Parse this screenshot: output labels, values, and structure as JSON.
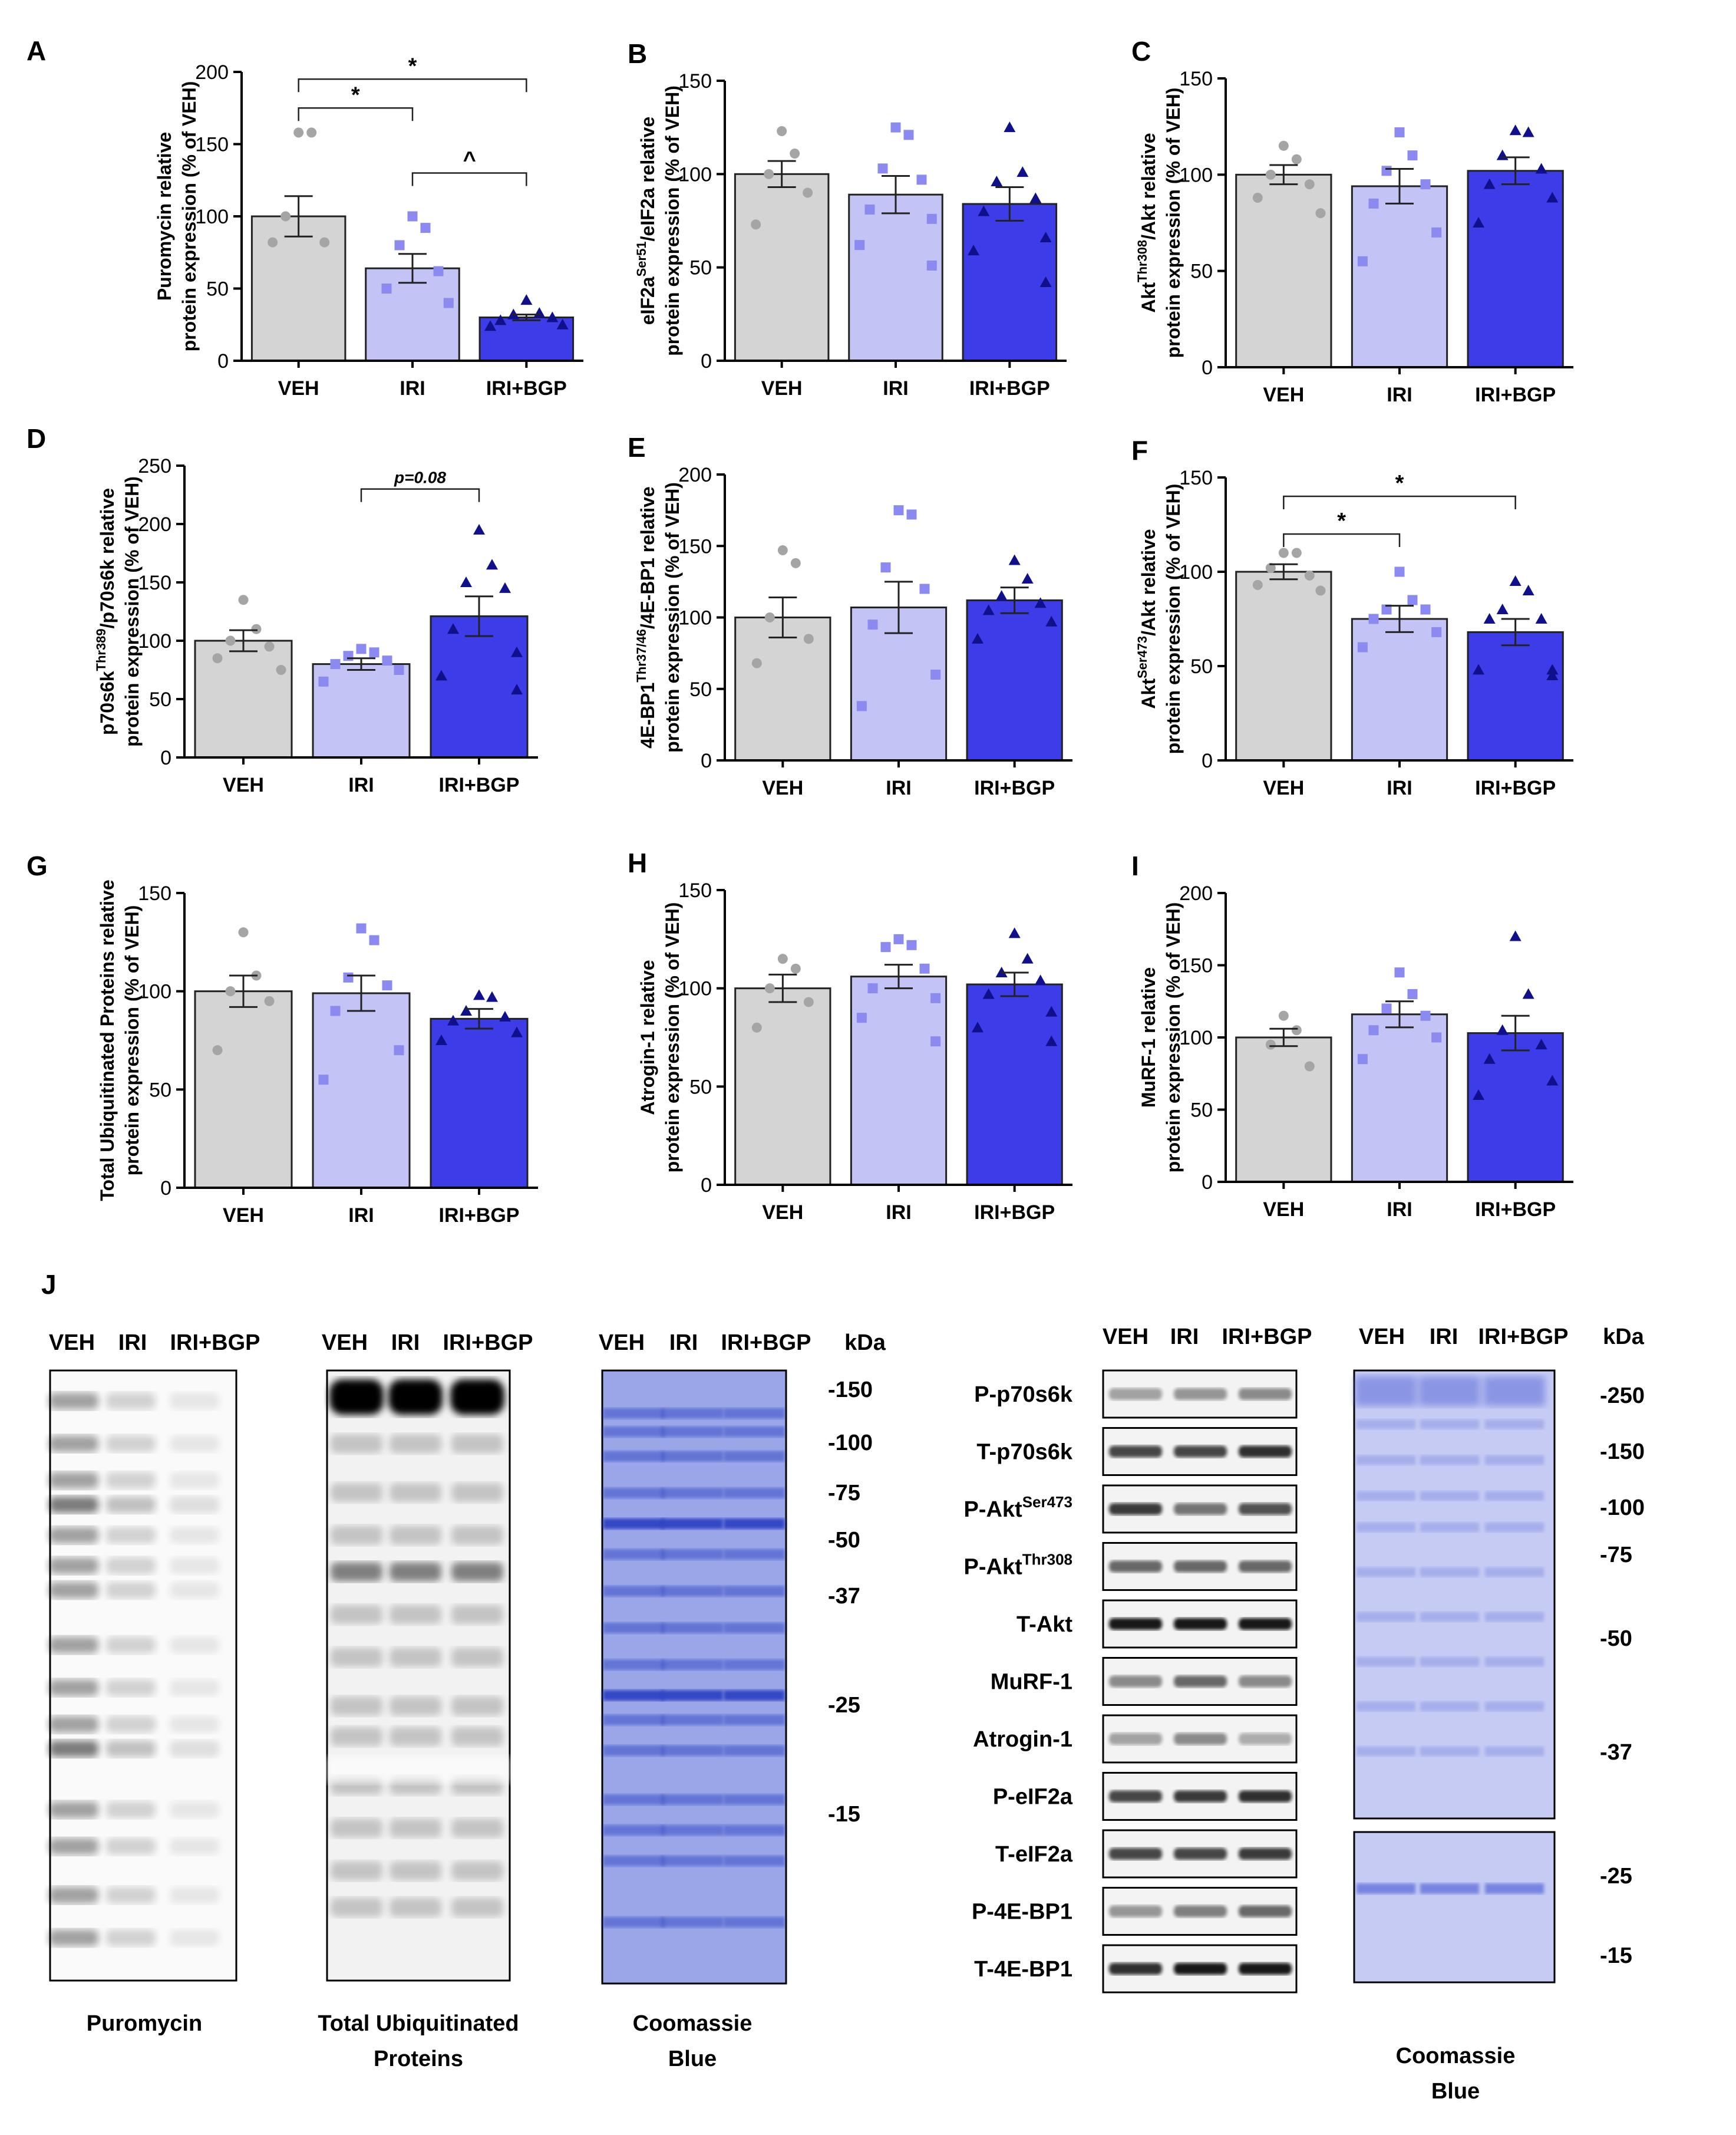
{
  "groups": [
    "VEH",
    "IRI",
    "IRI+BGP"
  ],
  "colors": {
    "VEH_bar": "#d4d4d4",
    "IRI_bar": "#c3c3f5",
    "BGP_bar": "#3c3ce8",
    "VEH_pt": "#a5a5a5",
    "IRI_pt": "#8a8af0",
    "BGP_pt": "#10108a",
    "coomassie": "#4a5fd0",
    "coomassie_light": "#9aa6e8"
  },
  "chart_data": [
    {
      "panel": "A",
      "type": "bar",
      "title": "",
      "ylabel": "Puromycin relative",
      "ylabel2": "protein expression (% of VEH)",
      "categories": [
        "VEH",
        "IRI",
        "IRI+BGP"
      ],
      "values": [
        100,
        64,
        30
      ],
      "sem": [
        14,
        10,
        2
      ],
      "ylim": [
        0,
        200
      ],
      "ticks": [
        0,
        50,
        100,
        150,
        200
      ],
      "points": [
        [
          158,
          158,
          100,
          82,
          82
        ],
        [
          100,
          92,
          80,
          62,
          50,
          40
        ],
        [
          42,
          33,
          32,
          30,
          28,
          25,
          24
        ]
      ],
      "markers": [
        "circle",
        "square",
        "triangle"
      ],
      "annotations": [
        {
          "from": 0,
          "to": 1,
          "level": 175,
          "text": "*"
        },
        {
          "from": 1,
          "to": 2,
          "level": 130,
          "text": "^"
        },
        {
          "from": 0,
          "to": 2,
          "level": 195,
          "text": "*"
        }
      ]
    },
    {
      "panel": "B",
      "type": "bar",
      "ylabel": "eIF2a relative",
      "ylabel_sup_base": "eIF2a",
      "ylabel_sup": "Ser51",
      "ylabel_suffix": "/eIF2a relative",
      "ylabel2": "protein expression (% of VEH)",
      "categories": [
        "VEH",
        "IRI",
        "IRI+BGP"
      ],
      "values": [
        100,
        89,
        84
      ],
      "sem": [
        7,
        10,
        9
      ],
      "ylim": [
        0,
        150
      ],
      "ticks": [
        0,
        50,
        100,
        150
      ],
      "points": [
        [
          123,
          111,
          100,
          90,
          73
        ],
        [
          125,
          121,
          103,
          97,
          81,
          76,
          62,
          51
        ],
        [
          125,
          101,
          96,
          87,
          80,
          66,
          59,
          42
        ]
      ],
      "markers": [
        "circle",
        "square",
        "triangle"
      ],
      "annotations": []
    },
    {
      "panel": "C",
      "type": "bar",
      "ylabel_sup_base": "Akt",
      "ylabel_sup": "Thr308",
      "ylabel_suffix": "/Akt relative",
      "ylabel2": "protein expression (% of VEH)",
      "categories": [
        "VEH",
        "IRI",
        "IRI+BGP"
      ],
      "values": [
        100,
        94,
        102
      ],
      "sem": [
        5,
        9,
        7
      ],
      "ylim": [
        0,
        150
      ],
      "ticks": [
        0,
        50,
        100,
        150
      ],
      "points": [
        [
          115,
          108,
          100,
          95,
          88,
          80
        ],
        [
          122,
          110,
          102,
          95,
          85,
          70,
          55
        ],
        [
          123,
          122,
          110,
          103,
          95,
          88,
          75
        ]
      ],
      "markers": [
        "circle",
        "square",
        "triangle"
      ],
      "annotations": []
    },
    {
      "panel": "D",
      "type": "bar",
      "ylabel_sup_base": "p70s6k",
      "ylabel_sup": "Thr389",
      "ylabel_suffix": "/p70s6k relative",
      "ylabel2": "protein expression (% of VEH)",
      "categories": [
        "VEH",
        "IRI",
        "IRI+BGP"
      ],
      "values": [
        100,
        80,
        121
      ],
      "sem": [
        9,
        5,
        17
      ],
      "ylim": [
        0,
        250
      ],
      "ticks": [
        0,
        50,
        100,
        150,
        200,
        250
      ],
      "points": [
        [
          135,
          110,
          100,
          95,
          85,
          75
        ],
        [
          93,
          90,
          87,
          83,
          80,
          75,
          65
        ],
        [
          195,
          165,
          150,
          145,
          110,
          90,
          70,
          58
        ]
      ],
      "markers": [
        "circle",
        "square",
        "triangle"
      ],
      "annotations": [
        {
          "from": 1,
          "to": 2,
          "level": 230,
          "text": "p=0.08",
          "italic": true
        }
      ]
    },
    {
      "panel": "E",
      "type": "bar",
      "ylabel_sup_base": "4E-BP1",
      "ylabel_sup": "Thr37/46",
      "ylabel_suffix": "/4E-BP1 relative",
      "ylabel2": "protein expression (% of VEH)",
      "categories": [
        "VEH",
        "IRI",
        "IRI+BGP"
      ],
      "values": [
        100,
        107,
        112
      ],
      "sem": [
        14,
        18,
        9
      ],
      "ylim": [
        0,
        200
      ],
      "ticks": [
        0,
        50,
        100,
        150,
        200
      ],
      "points": [
        [
          147,
          138,
          100,
          85,
          68
        ],
        [
          175,
          172,
          135,
          120,
          95,
          60,
          38
        ],
        [
          140,
          127,
          115,
          110,
          105,
          97,
          85
        ]
      ],
      "markers": [
        "circle",
        "square",
        "triangle"
      ],
      "annotations": []
    },
    {
      "panel": "F",
      "type": "bar",
      "ylabel_sup_base": "Akt",
      "ylabel_sup": "Ser473",
      "ylabel_suffix": "/Akt relative",
      "ylabel2": "protein expression (% of VEH)",
      "categories": [
        "VEH",
        "IRI",
        "IRI+BGP"
      ],
      "values": [
        100,
        75,
        68
      ],
      "sem": [
        4,
        7,
        7
      ],
      "ylim": [
        0,
        150
      ],
      "ticks": [
        0,
        50,
        100,
        150
      ],
      "points": [
        [
          110,
          110,
          102,
          98,
          93,
          90
        ],
        [
          100,
          85,
          80,
          80,
          75,
          68,
          60
        ],
        [
          95,
          90,
          80,
          75,
          75,
          48,
          48,
          45
        ]
      ],
      "markers": [
        "circle",
        "square",
        "triangle"
      ],
      "annotations": [
        {
          "from": 0,
          "to": 1,
          "level": 120,
          "text": "*"
        },
        {
          "from": 0,
          "to": 2,
          "level": 140,
          "text": "*"
        }
      ]
    },
    {
      "panel": "G",
      "type": "bar",
      "ylabel": "Total Ubiquitinated Proteins relative",
      "ylabel2": "protein expression (% of VEH)",
      "categories": [
        "VEH",
        "IRI",
        "IRI+BGP"
      ],
      "values": [
        100,
        99,
        86
      ],
      "sem": [
        8,
        9,
        5
      ],
      "ylim": [
        0,
        150
      ],
      "ticks": [
        0,
        50,
        100,
        150
      ],
      "points": [
        [
          130,
          108,
          100,
          95,
          70
        ],
        [
          132,
          126,
          107,
          103,
          90,
          70,
          55
        ],
        [
          98,
          97,
          90,
          87,
          85,
          79,
          75
        ]
      ],
      "markers": [
        "circle",
        "square",
        "triangle"
      ],
      "annotations": []
    },
    {
      "panel": "H",
      "type": "bar",
      "ylabel": "Atrogin-1 relative",
      "ylabel2": "protein expression (% of VEH)",
      "categories": [
        "VEH",
        "IRI",
        "IRI+BGP"
      ],
      "values": [
        100,
        106,
        102
      ],
      "sem": [
        7,
        6,
        6
      ],
      "ylim": [
        0,
        150
      ],
      "ticks": [
        0,
        50,
        100,
        150
      ],
      "points": [
        [
          115,
          110,
          100,
          93,
          80
        ],
        [
          125,
          122,
          121,
          110,
          100,
          95,
          85,
          73
        ],
        [
          128,
          115,
          108,
          104,
          97,
          88,
          80,
          73
        ]
      ],
      "markers": [
        "circle",
        "square",
        "triangle"
      ],
      "annotations": []
    },
    {
      "panel": "I",
      "type": "bar",
      "ylabel": "MuRF-1 relative",
      "ylabel2": "protein expression (% of VEH)",
      "categories": [
        "VEH",
        "IRI",
        "IRI+BGP"
      ],
      "values": [
        100,
        116,
        103
      ],
      "sem": [
        6,
        9,
        12
      ],
      "ylim": [
        0,
        200
      ],
      "ticks": [
        0,
        50,
        100,
        150,
        200
      ],
      "points": [
        [
          115,
          105,
          95,
          80
        ],
        [
          145,
          130,
          120,
          115,
          105,
          100,
          85
        ],
        [
          170,
          130,
          105,
          95,
          85,
          70,
          60
        ]
      ],
      "markers": [
        "circle",
        "square",
        "triangle"
      ],
      "annotations": []
    }
  ],
  "panel_j": {
    "letter": "J",
    "blot_headers": [
      "VEH",
      "IRI",
      "IRI+BGP"
    ],
    "kda_label": "kDa",
    "puromycin_caption": "Puromycin",
    "ubiq_caption_1": "Total Ubiquitinated",
    "ubiq_caption_2": "Proteins",
    "coomassie_caption_1": "Coomassie",
    "coomassie_caption_2": "Blue",
    "kda_left": [
      "-150",
      "-100",
      "-75",
      "-50",
      "-37",
      "-25",
      "-15"
    ],
    "kda_right": [
      "-250",
      "-150",
      "-100",
      "-75",
      "-50",
      "-37",
      "-25",
      "-15"
    ],
    "strip_labels": [
      {
        "base": "P-p70s6k",
        "sup": ""
      },
      {
        "base": "T-p70s6k",
        "sup": ""
      },
      {
        "base": "P-Akt",
        "sup": "Ser473"
      },
      {
        "base": "P-Akt",
        "sup": "Thr308"
      },
      {
        "base": "T-Akt",
        "sup": ""
      },
      {
        "base": "MuRF-1",
        "sup": ""
      },
      {
        "base": "Atrogin-1",
        "sup": ""
      },
      {
        "base": "P-eIF2a",
        "sup": ""
      },
      {
        "base": "T-eIF2a",
        "sup": ""
      },
      {
        "base": "P-4E-BP1",
        "sup": ""
      },
      {
        "base": "T-4E-BP1",
        "sup": ""
      }
    ],
    "strip_intensity": [
      [
        0.35,
        0.4,
        0.45
      ],
      [
        0.75,
        0.75,
        0.85
      ],
      [
        0.8,
        0.55,
        0.7
      ],
      [
        0.6,
        0.6,
        0.6
      ],
      [
        0.95,
        0.95,
        0.95
      ],
      [
        0.45,
        0.6,
        0.45
      ],
      [
        0.35,
        0.45,
        0.3
      ],
      [
        0.75,
        0.8,
        0.85
      ],
      [
        0.75,
        0.75,
        0.8
      ],
      [
        0.4,
        0.5,
        0.6
      ],
      [
        0.85,
        0.95,
        0.95
      ]
    ]
  }
}
